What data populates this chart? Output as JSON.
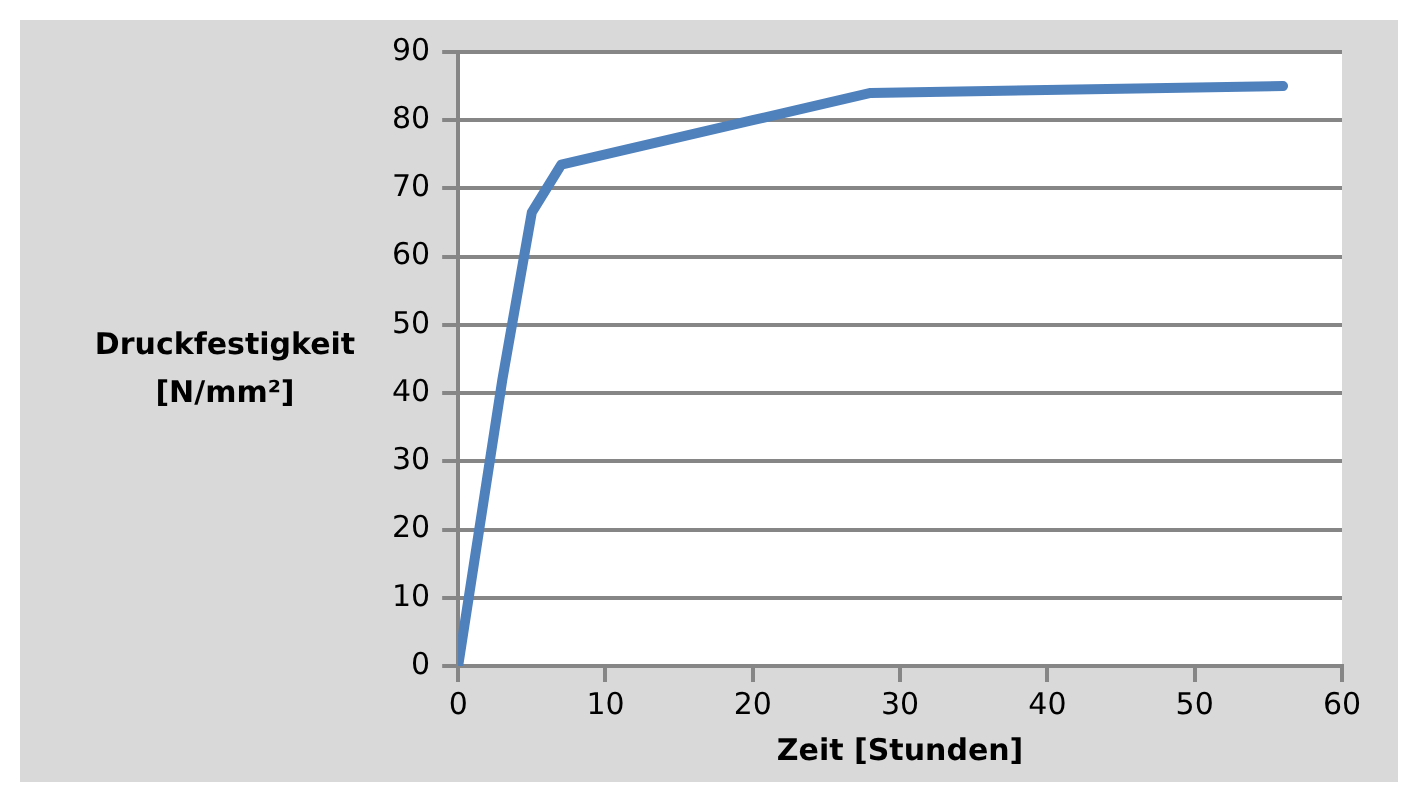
{
  "chart_data": {
    "type": "line",
    "xlabel": "Zeit [Stunden]",
    "ylabel": "Druckfestigkeit [N/mm²]",
    "x": [
      0,
      3,
      5,
      7,
      20,
      28,
      56
    ],
    "series": [
      {
        "color": "#4f81bd",
        "values": [
          0,
          42,
          66.5,
          73.5,
          80,
          84,
          85
        ]
      }
    ],
    "xlim": [
      0,
      60
    ],
    "xticks": [
      0,
      10,
      20,
      30,
      40,
      50,
      60
    ],
    "ylim": [
      0,
      90
    ],
    "yticks": [
      0,
      10,
      20,
      30,
      40,
      50,
      60,
      70,
      80,
      90
    ],
    "grid": "y",
    "legend": false,
    "marker": "none",
    "line_style": "solid"
  }
}
